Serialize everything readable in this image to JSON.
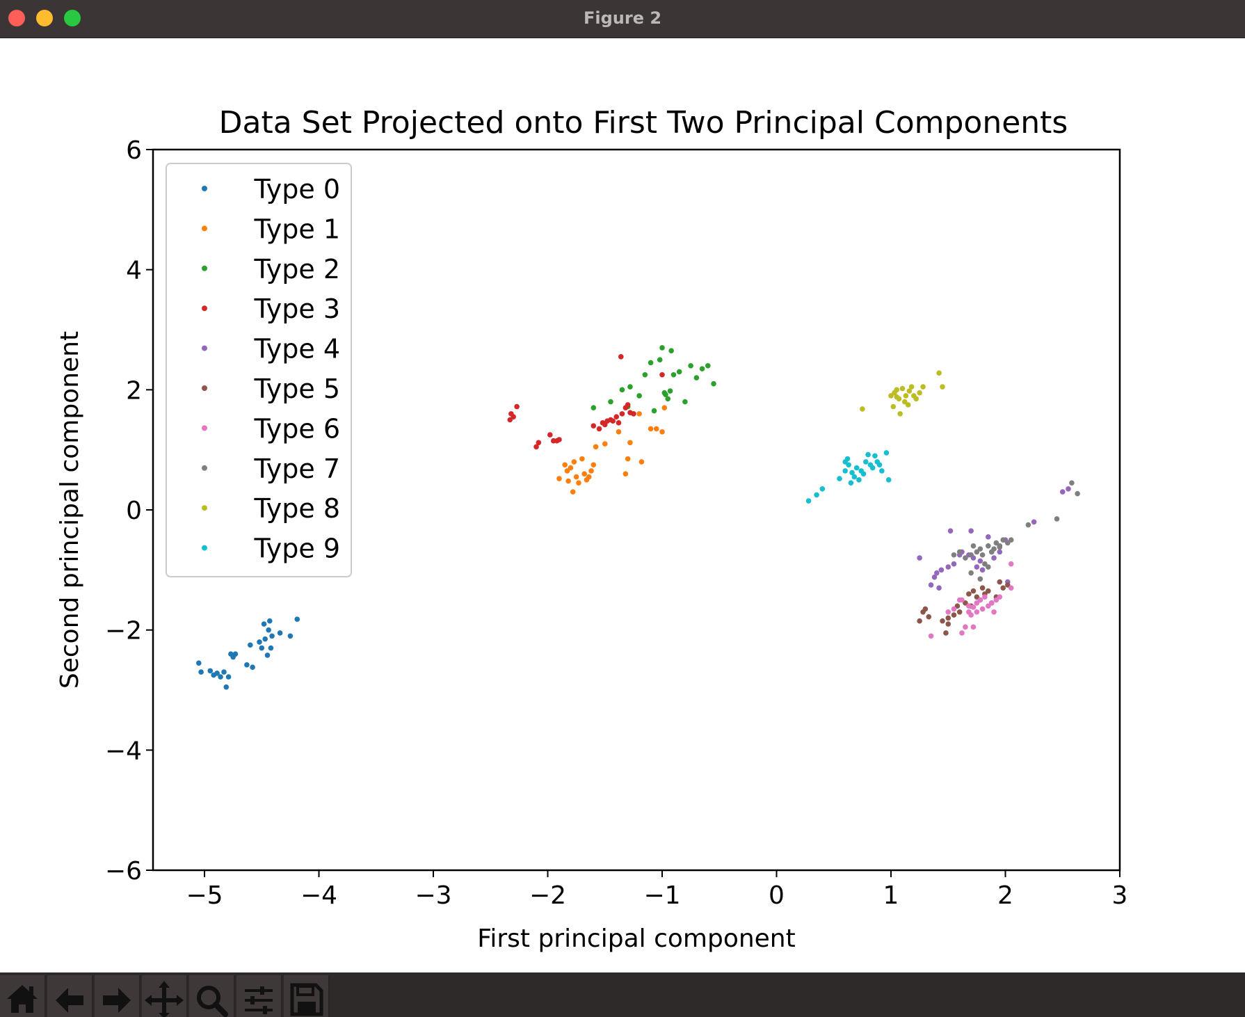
{
  "window": {
    "title": "Figure 2"
  },
  "toolbar": {
    "buttons": [
      {
        "name": "home-icon"
      },
      {
        "name": "back-arrow-icon"
      },
      {
        "name": "forward-arrow-icon"
      },
      {
        "name": "pan-icon"
      },
      {
        "name": "zoom-icon"
      },
      {
        "name": "subplots-settings-icon"
      },
      {
        "name": "save-icon"
      }
    ]
  },
  "chart_data": {
    "type": "scatter",
    "title": "Data Set Projected onto First Two Principal Components",
    "xlabel": "First principal component",
    "ylabel": "Second principal component",
    "xlim": [
      -5.45,
      3.0
    ],
    "ylim": [
      -6,
      6
    ],
    "xticks": [
      -5,
      -4,
      -3,
      -2,
      -1,
      0,
      1,
      2,
      3
    ],
    "yticks": [
      -6,
      -4,
      -2,
      0,
      2,
      4,
      6
    ],
    "xtick_labels": [
      "−5",
      "−4",
      "−3",
      "−2",
      "−1",
      "0",
      "1",
      "2",
      "3"
    ],
    "ytick_labels": [
      "−6",
      "−4",
      "−2",
      "0",
      "2",
      "4",
      "6"
    ],
    "grid": false,
    "legend_position": "upper-left",
    "series": [
      {
        "name": "Type 0",
        "color": "#1f77b4",
        "points": [
          [
            -5.05,
            -2.55
          ],
          [
            -5.03,
            -2.7
          ],
          [
            -4.95,
            -2.68
          ],
          [
            -4.92,
            -2.75
          ],
          [
            -4.89,
            -2.72
          ],
          [
            -4.86,
            -2.78
          ],
          [
            -4.83,
            -2.7
          ],
          [
            -4.81,
            -2.95
          ],
          [
            -4.79,
            -2.78
          ],
          [
            -4.77,
            -2.4
          ],
          [
            -4.75,
            -2.45
          ],
          [
            -4.73,
            -2.4
          ],
          [
            -4.63,
            -2.58
          ],
          [
            -4.6,
            -2.25
          ],
          [
            -4.58,
            -2.62
          ],
          [
            -4.52,
            -2.2
          ],
          [
            -4.5,
            -2.3
          ],
          [
            -4.48,
            -1.9
          ],
          [
            -4.47,
            -2.15
          ],
          [
            -4.45,
            -2.42
          ],
          [
            -4.44,
            -2.0
          ],
          [
            -4.43,
            -1.85
          ],
          [
            -4.42,
            -2.3
          ],
          [
            -4.41,
            -2.1
          ],
          [
            -4.34,
            -2.05
          ],
          [
            -4.25,
            -2.1
          ],
          [
            -4.19,
            -1.82
          ]
        ]
      },
      {
        "name": "Type 1",
        "color": "#ff7f0e",
        "points": [
          [
            -1.9,
            0.52
          ],
          [
            -1.85,
            0.75
          ],
          [
            -1.83,
            0.65
          ],
          [
            -1.82,
            0.48
          ],
          [
            -1.8,
            0.7
          ],
          [
            -1.78,
            0.3
          ],
          [
            -1.77,
            0.8
          ],
          [
            -1.75,
            0.55
          ],
          [
            -1.73,
            0.45
          ],
          [
            -1.7,
            0.85
          ],
          [
            -1.68,
            0.6
          ],
          [
            -1.66,
            0.5
          ],
          [
            -1.64,
            0.55
          ],
          [
            -1.62,
            0.65
          ],
          [
            -1.6,
            0.75
          ],
          [
            -1.58,
            1.05
          ],
          [
            -1.5,
            1.1
          ],
          [
            -1.38,
            1.3
          ],
          [
            -1.32,
            0.6
          ],
          [
            -1.3,
            0.85
          ],
          [
            -1.28,
            1.12
          ],
          [
            -1.2,
            1.6
          ],
          [
            -1.18,
            0.8
          ],
          [
            -1.1,
            1.35
          ],
          [
            -1.05,
            1.35
          ],
          [
            -1.0,
            1.3
          ],
          [
            -0.98,
            1.7
          ]
        ]
      },
      {
        "name": "Type 2",
        "color": "#2ca02c",
        "points": [
          [
            -1.6,
            1.7
          ],
          [
            -1.3,
            1.72
          ],
          [
            -1.28,
            2.05
          ],
          [
            -1.25,
            1.6
          ],
          [
            -1.2,
            1.9
          ],
          [
            -1.15,
            2.25
          ],
          [
            -1.1,
            2.45
          ],
          [
            -1.07,
            1.65
          ],
          [
            -1.02,
            2.5
          ],
          [
            -1.0,
            2.7
          ],
          [
            -0.98,
            1.95
          ],
          [
            -0.95,
            1.85
          ],
          [
            -0.93,
            1.98
          ],
          [
            -0.92,
            2.65
          ],
          [
            -0.9,
            2.25
          ],
          [
            -0.85,
            2.3
          ],
          [
            -0.8,
            1.8
          ],
          [
            -0.75,
            2.4
          ],
          [
            -0.7,
            2.2
          ],
          [
            -0.65,
            2.35
          ],
          [
            -0.6,
            2.4
          ],
          [
            -0.55,
            2.1
          ],
          [
            -1.45,
            1.8
          ],
          [
            -1.35,
            2.0
          ],
          [
            -0.97,
            1.92
          ]
        ]
      },
      {
        "name": "Type 3",
        "color": "#d62728",
        "points": [
          [
            -2.33,
            1.5
          ],
          [
            -2.32,
            1.6
          ],
          [
            -2.3,
            1.55
          ],
          [
            -2.27,
            1.72
          ],
          [
            -2.1,
            1.05
          ],
          [
            -2.08,
            1.12
          ],
          [
            -1.98,
            1.25
          ],
          [
            -1.95,
            1.15
          ],
          [
            -1.92,
            1.15
          ],
          [
            -1.9,
            1.17
          ],
          [
            -1.6,
            1.4
          ],
          [
            -1.55,
            1.35
          ],
          [
            -1.52,
            1.45
          ],
          [
            -1.5,
            1.42
          ],
          [
            -1.48,
            1.48
          ],
          [
            -1.45,
            1.5
          ],
          [
            -1.43,
            1.48
          ],
          [
            -1.4,
            1.55
          ],
          [
            -1.38,
            1.45
          ],
          [
            -1.36,
            2.55
          ],
          [
            -1.35,
            1.6
          ],
          [
            -1.32,
            1.7
          ],
          [
            -1.3,
            1.75
          ],
          [
            -1.28,
            1.62
          ],
          [
            -1.25,
            1.6
          ],
          [
            -1.0,
            2.25
          ]
        ]
      },
      {
        "name": "Type 4",
        "color": "#9467bd",
        "points": [
          [
            1.25,
            -0.8
          ],
          [
            1.38,
            -1.12
          ],
          [
            1.4,
            -1.05
          ],
          [
            1.42,
            -1.3
          ],
          [
            1.44,
            -1.0
          ],
          [
            1.5,
            -0.95
          ],
          [
            1.52,
            -0.35
          ],
          [
            1.55,
            -0.9
          ],
          [
            1.6,
            -0.75
          ],
          [
            1.62,
            -0.7
          ],
          [
            1.68,
            -0.75
          ],
          [
            1.7,
            -0.35
          ],
          [
            1.72,
            -0.8
          ],
          [
            1.75,
            -0.95
          ],
          [
            1.78,
            -0.85
          ],
          [
            1.8,
            -1.0
          ],
          [
            1.85,
            -0.45
          ],
          [
            1.88,
            -0.7
          ],
          [
            1.9,
            -0.8
          ],
          [
            1.95,
            -0.7
          ],
          [
            2.0,
            -0.5
          ],
          [
            2.02,
            -1.2
          ],
          [
            2.25,
            -0.2
          ],
          [
            2.5,
            0.3
          ],
          [
            2.55,
            0.35
          ],
          [
            1.35,
            -1.25
          ]
        ]
      },
      {
        "name": "Type 5",
        "color": "#8c564b",
        "points": [
          [
            1.25,
            -1.85
          ],
          [
            1.28,
            -1.7
          ],
          [
            1.3,
            -1.65
          ],
          [
            1.33,
            -1.78
          ],
          [
            1.45,
            -1.85
          ],
          [
            1.48,
            -2.05
          ],
          [
            1.5,
            -1.8
          ],
          [
            1.55,
            -1.75
          ],
          [
            1.58,
            -1.6
          ],
          [
            1.6,
            -1.7
          ],
          [
            1.65,
            -1.55
          ],
          [
            1.68,
            -1.4
          ],
          [
            1.72,
            -1.35
          ],
          [
            1.75,
            -1.45
          ],
          [
            1.78,
            -1.5
          ],
          [
            1.8,
            -1.3
          ],
          [
            1.82,
            -1.4
          ],
          [
            1.85,
            -1.35
          ],
          [
            1.88,
            -1.55
          ],
          [
            1.92,
            -1.45
          ],
          [
            1.95,
            -1.2
          ],
          [
            1.98,
            -1.3
          ],
          [
            2.02,
            -1.25
          ],
          [
            1.5,
            -1.9
          ],
          [
            1.7,
            -1.6
          ]
        ]
      },
      {
        "name": "Type 6",
        "color": "#e377c2",
        "points": [
          [
            1.35,
            -2.1
          ],
          [
            1.5,
            -1.7
          ],
          [
            1.55,
            -1.65
          ],
          [
            1.6,
            -1.5
          ],
          [
            1.62,
            -2.05
          ],
          [
            1.65,
            -1.95
          ],
          [
            1.68,
            -1.6
          ],
          [
            1.7,
            -1.75
          ],
          [
            1.72,
            -1.62
          ],
          [
            1.75,
            -1.7
          ],
          [
            1.78,
            -1.5
          ],
          [
            1.8,
            -1.65
          ],
          [
            1.82,
            -1.45
          ],
          [
            1.85,
            -1.6
          ],
          [
            1.88,
            -1.55
          ],
          [
            1.9,
            -1.7
          ],
          [
            1.92,
            -1.5
          ],
          [
            1.95,
            -1.45
          ],
          [
            1.75,
            -1.55
          ],
          [
            1.72,
            -1.95
          ],
          [
            2.05,
            -1.3
          ],
          [
            2.05,
            -0.9
          ],
          [
            1.62,
            -1.5
          ],
          [
            1.68,
            -1.7
          ]
        ]
      },
      {
        "name": "Type 7",
        "color": "#7f7f7f",
        "points": [
          [
            1.55,
            -0.75
          ],
          [
            1.6,
            -0.7
          ],
          [
            1.65,
            -0.8
          ],
          [
            1.7,
            -0.75
          ],
          [
            1.72,
            -0.6
          ],
          [
            1.75,
            -0.7
          ],
          [
            1.78,
            -0.65
          ],
          [
            1.8,
            -0.75
          ],
          [
            1.82,
            -0.9
          ],
          [
            1.85,
            -0.6
          ],
          [
            1.88,
            -0.7
          ],
          [
            1.9,
            -0.65
          ],
          [
            1.92,
            -0.55
          ],
          [
            1.95,
            -0.6
          ],
          [
            1.98,
            -0.5
          ],
          [
            2.02,
            -0.55
          ],
          [
            2.05,
            -0.5
          ],
          [
            2.2,
            -0.25
          ],
          [
            2.45,
            -0.15
          ],
          [
            2.58,
            0.45
          ],
          [
            2.63,
            0.27
          ],
          [
            1.7,
            -1.05
          ],
          [
            1.78,
            -1.15
          ],
          [
            1.85,
            -0.95
          ],
          [
            1.95,
            -0.62
          ]
        ]
      },
      {
        "name": "Type 8",
        "color": "#bcbd22",
        "points": [
          [
            0.75,
            1.68
          ],
          [
            1.0,
            1.9
          ],
          [
            1.02,
            1.72
          ],
          [
            1.03,
            1.95
          ],
          [
            1.05,
            2.0
          ],
          [
            1.07,
            1.85
          ],
          [
            1.08,
            1.6
          ],
          [
            1.1,
            2.02
          ],
          [
            1.12,
            1.8
          ],
          [
            1.13,
            1.9
          ],
          [
            1.15,
            1.75
          ],
          [
            1.16,
            1.98
          ],
          [
            1.18,
            2.05
          ],
          [
            1.2,
            1.9
          ],
          [
            1.22,
            1.85
          ],
          [
            1.25,
            1.95
          ],
          [
            1.28,
            2.05
          ],
          [
            1.42,
            2.28
          ],
          [
            1.45,
            2.05
          ],
          [
            1.05,
            1.88
          ]
        ]
      },
      {
        "name": "Type 9",
        "color": "#17becf",
        "points": [
          [
            0.28,
            0.15
          ],
          [
            0.35,
            0.25
          ],
          [
            0.4,
            0.35
          ],
          [
            0.55,
            0.52
          ],
          [
            0.6,
            0.65
          ],
          [
            0.62,
            0.85
          ],
          [
            0.63,
            0.75
          ],
          [
            0.65,
            0.45
          ],
          [
            0.66,
            0.62
          ],
          [
            0.68,
            0.55
          ],
          [
            0.7,
            0.7
          ],
          [
            0.72,
            0.5
          ],
          [
            0.74,
            0.65
          ],
          [
            0.76,
            0.6
          ],
          [
            0.78,
            0.8
          ],
          [
            0.8,
            0.92
          ],
          [
            0.82,
            0.75
          ],
          [
            0.84,
            0.7
          ],
          [
            0.86,
            0.9
          ],
          [
            0.88,
            0.8
          ],
          [
            0.9,
            0.75
          ],
          [
            0.92,
            0.65
          ],
          [
            0.96,
            0.95
          ],
          [
            0.98,
            0.5
          ],
          [
            0.6,
            0.8
          ]
        ]
      }
    ]
  }
}
